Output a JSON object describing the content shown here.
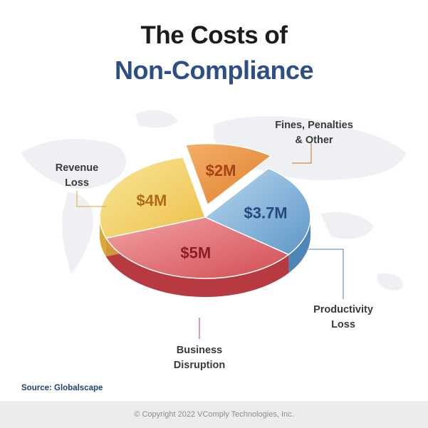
{
  "title": {
    "line1": "The Costs of",
    "line2": "Non-Compliance"
  },
  "chart_data": {
    "type": "pie",
    "categories": [
      "Fines, Penalties & Other",
      "Productivity Loss",
      "Business Disruption",
      "Revenue Loss"
    ],
    "category_lines": [
      [
        "Fines, Penalties",
        "& Other"
      ],
      [
        "Productivity",
        "Loss"
      ],
      [
        "Business",
        "Disruption"
      ],
      [
        "Revenue",
        "Loss"
      ]
    ],
    "values": [
      2,
      3.7,
      5,
      4
    ],
    "value_labels": [
      "$2M",
      "$3.7M",
      "$5M",
      "$4M"
    ],
    "unit": "$M",
    "colors": [
      "#e8913f",
      "#7fb4dc",
      "#e0666a",
      "#f2d060"
    ],
    "exploded": [
      true,
      false,
      false,
      false
    ]
  },
  "source": "Source: Globalscape",
  "footer": "© Copyright 2022 VComply Technologies, Inc."
}
